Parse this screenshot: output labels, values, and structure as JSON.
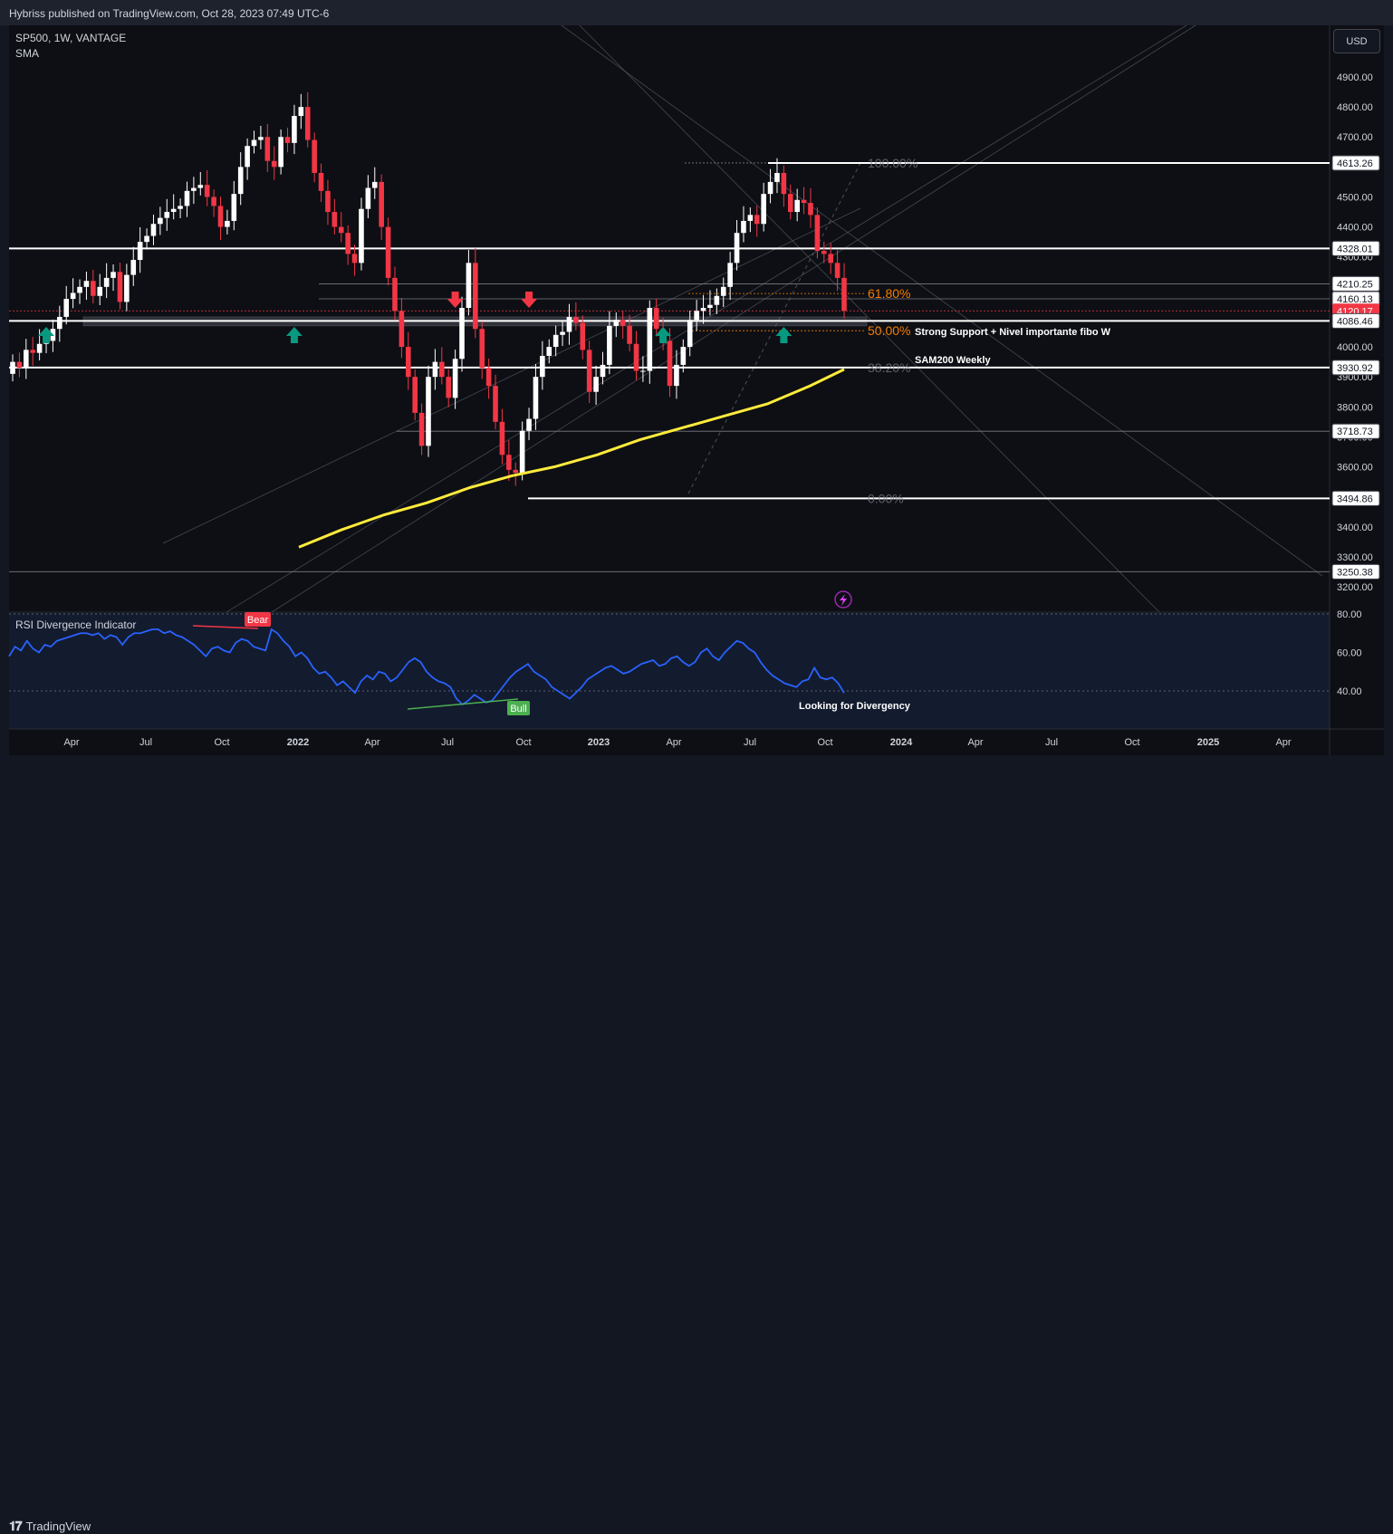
{
  "header": {
    "published": "Hybriss published on TradingView.com, Oct 28, 2023 07:49 UTC-6"
  },
  "legend": {
    "symbol": "SP500, 1W, VANTAGE",
    "indicator": "SMA"
  },
  "currency_button": "USD",
  "footer": {
    "brand": "TradingView"
  },
  "chart_data": {
    "type": "candlestick",
    "symbol": "SP500",
    "interval": "1W",
    "price_axis": {
      "ticks": [
        "4900.00",
        "4800.00",
        "4700.00",
        "4600.00",
        "4500.00",
        "4400.00",
        "4300.00",
        "4200.00",
        "4100.00",
        "4000.00",
        "3900.00",
        "3800.00",
        "3700.00",
        "3600.00",
        "3500.00",
        "3400.00",
        "3300.00",
        "3200.00"
      ],
      "ylim": [
        3100,
        5000
      ]
    },
    "price_badges": [
      {
        "label": "4613.26",
        "value": 4613.26,
        "style": "line"
      },
      {
        "label": "4328.01",
        "value": 4328.01,
        "style": "line"
      },
      {
        "label": "4210.25",
        "value": 4210.25,
        "style": "thin"
      },
      {
        "label": "4160.13",
        "value": 4160.13,
        "style": "thin"
      },
      {
        "label": "4120.17",
        "value": 4120.17,
        "style": "current"
      },
      {
        "label": "4086.46",
        "value": 4086.46,
        "style": "line"
      },
      {
        "label": "3930.92",
        "value": 3930.92,
        "style": "line"
      },
      {
        "label": "3718.73",
        "value": 3718.73,
        "style": "thin"
      },
      {
        "label": "3494.86",
        "value": 3494.86,
        "style": "line"
      },
      {
        "label": "3250.38",
        "value": 3250.38,
        "style": "thin"
      }
    ],
    "time_axis": [
      {
        "label": "Apr",
        "major": false
      },
      {
        "label": "Jul",
        "major": false
      },
      {
        "label": "Oct",
        "major": false
      },
      {
        "label": "2022",
        "major": true
      },
      {
        "label": "Apr",
        "major": false
      },
      {
        "label": "Jul",
        "major": false
      },
      {
        "label": "Oct",
        "major": false
      },
      {
        "label": "2023",
        "major": true
      },
      {
        "label": "Apr",
        "major": false
      },
      {
        "label": "Jul",
        "major": false
      },
      {
        "label": "Oct",
        "major": false
      },
      {
        "label": "2024",
        "major": true
      },
      {
        "label": "Apr",
        "major": false
      },
      {
        "label": "Jul",
        "major": false
      },
      {
        "label": "Oct",
        "major": false
      },
      {
        "label": "2025",
        "major": true
      },
      {
        "label": "Apr",
        "major": false
      }
    ],
    "fib_levels": [
      {
        "label": "100.00%",
        "value": 4613.26,
        "color": "#787b86"
      },
      {
        "label": "61.80%",
        "value": 4178,
        "color": "#f57c00"
      },
      {
        "label": "50.00%",
        "value": 4054,
        "color": "#f57c00"
      },
      {
        "label": "38.20%",
        "value": 3930.92,
        "color": "#787b86"
      },
      {
        "label": "0.00%",
        "value": 3494.86,
        "color": "#787b86"
      }
    ],
    "annotations": [
      {
        "text": "Strong Support + Nivel importante fibo W"
      },
      {
        "text": "SAM200 Weekly"
      },
      {
        "text": "Looking for Divergency"
      }
    ],
    "sma200": {
      "name": "SMA",
      "color": "#ffeb3b",
      "points": [
        [
          0,
          3332
        ],
        [
          50,
          3390
        ],
        [
          100,
          3440
        ],
        [
          150,
          3480
        ],
        [
          200,
          3530
        ],
        [
          250,
          3570
        ],
        [
          300,
          3600
        ],
        [
          350,
          3640
        ],
        [
          400,
          3690
        ],
        [
          450,
          3730
        ],
        [
          500,
          3770
        ],
        [
          550,
          3810
        ],
        [
          600,
          3870
        ],
        [
          640,
          3925
        ]
      ]
    },
    "candles_close": [
      3950,
      3930,
      3990,
      3980,
      4010,
      4020,
      4060,
      4100,
      4160,
      4180,
      4200,
      4220,
      4170,
      4200,
      4230,
      4250,
      4150,
      4240,
      4290,
      4350,
      4370,
      4410,
      4430,
      4450,
      4460,
      4470,
      4520,
      4530,
      4540,
      4500,
      4470,
      4400,
      4420,
      4510,
      4600,
      4670,
      4690,
      4700,
      4620,
      4600,
      4700,
      4680,
      4770,
      4800,
      4690,
      4580,
      4520,
      4450,
      4400,
      4380,
      4310,
      4280,
      4460,
      4530,
      4550,
      4400,
      4230,
      4120,
      4000,
      3900,
      3780,
      3670,
      3900,
      3950,
      3900,
      3830,
      3960,
      4130,
      4280,
      4060,
      3930,
      3870,
      3750,
      3640,
      3590,
      3580,
      3720,
      3760,
      3900,
      3970,
      4000,
      4040,
      4050,
      4100,
      4080,
      3990,
      3850,
      3900,
      3940,
      4070,
      4090,
      4070,
      4010,
      3920,
      3920,
      4130,
      4060,
      4020,
      3870,
      3940,
      4000,
      4090,
      4120,
      4130,
      4140,
      4170,
      4200,
      4280,
      4380,
      4420,
      4440,
      4410,
      4510,
      4550,
      4580,
      4510,
      4450,
      4490,
      4480,
      4440,
      4320,
      4310,
      4280,
      4230,
      4120
    ],
    "arrows": [
      {
        "index": 5,
        "dir": "up"
      },
      {
        "index": 42,
        "dir": "up"
      },
      {
        "index": 97,
        "dir": "up"
      },
      {
        "index": 115,
        "dir": "up"
      },
      {
        "index": 66,
        "dir": "down"
      },
      {
        "index": 77,
        "dir": "down"
      }
    ]
  },
  "rsi": {
    "title": "RSI Divergence Indicator",
    "ticks": [
      "80.00",
      "60.00",
      "40.00"
    ],
    "ylim": [
      30,
      80
    ],
    "labels": [
      {
        "text": "Bear",
        "color": "#f23645"
      },
      {
        "text": "Bull",
        "color": "#4caf50"
      }
    ],
    "values": [
      58,
      63,
      61,
      66,
      62,
      60,
      64,
      63,
      66,
      67,
      68,
      69,
      70,
      70,
      69,
      70,
      67,
      69,
      68,
      64,
      68,
      70,
      70,
      71,
      72,
      72,
      70,
      71,
      69,
      68,
      66,
      64,
      61,
      58,
      62,
      63,
      61,
      60,
      65,
      67,
      66,
      63,
      62,
      61,
      72,
      70,
      66,
      63,
      58,
      60,
      57,
      52,
      49,
      50,
      47,
      43,
      45,
      42,
      39,
      45,
      48,
      46,
      50,
      49,
      45,
      47,
      51,
      55,
      57,
      55,
      50,
      47,
      45,
      44,
      42,
      36,
      33,
      35,
      38,
      36,
      34,
      35,
      39,
      43,
      47,
      50,
      52,
      54,
      50,
      48,
      46,
      42,
      40,
      38,
      36,
      39,
      42,
      46,
      48,
      50,
      52,
      53,
      51,
      49,
      50,
      52,
      54,
      55,
      56,
      53,
      54,
      57,
      58,
      55,
      53,
      55,
      60,
      62,
      58,
      56,
      60,
      63,
      66,
      65,
      62,
      60,
      55,
      51,
      48,
      46,
      44,
      43,
      42,
      45,
      46,
      52,
      47,
      46,
      47,
      44,
      39
    ]
  }
}
